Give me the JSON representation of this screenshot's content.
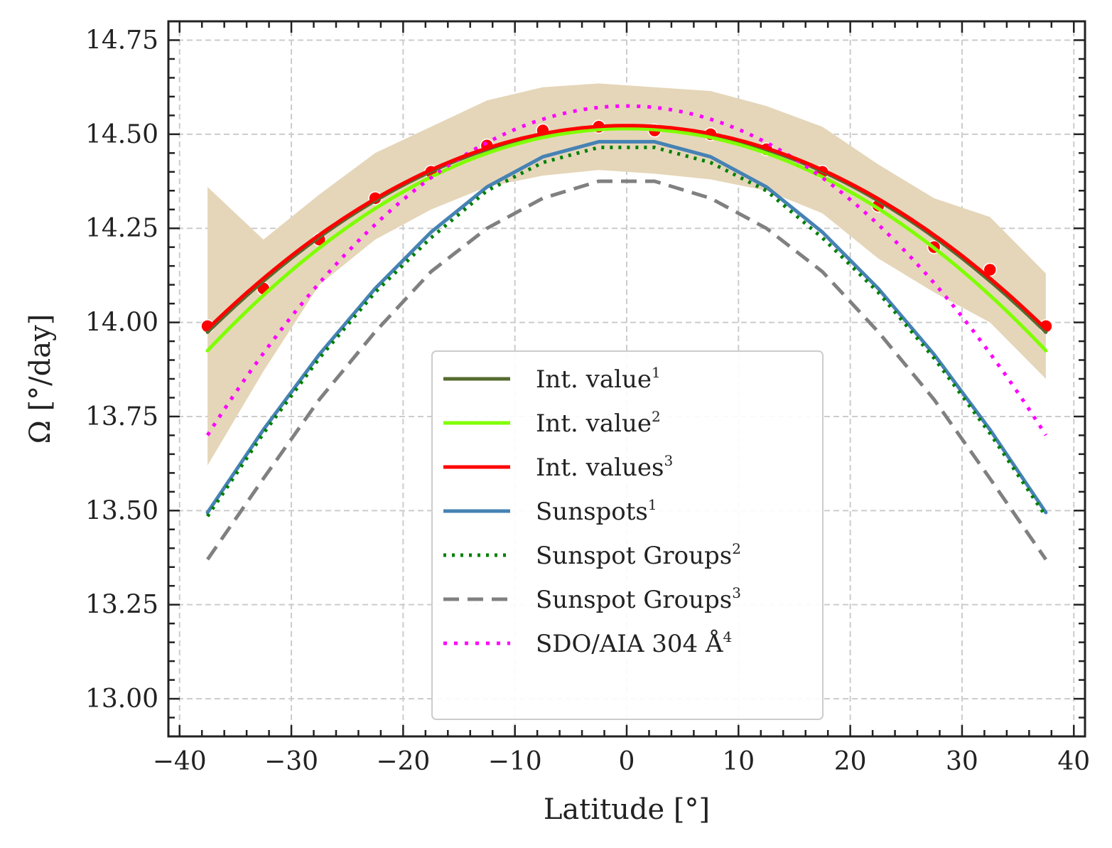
{
  "chart_data": {
    "type": "line",
    "xlabel": "Latitude  [°]",
    "ylabel": "Ω  [°/day]",
    "xlim": [
      -41,
      41
    ],
    "ylim": [
      12.9,
      14.8
    ],
    "xticks": [
      -40,
      -30,
      -20,
      -10,
      0,
      10,
      20,
      30,
      40
    ],
    "xtick_labels": [
      "−40",
      "−30",
      "−20",
      "−10",
      "0",
      "10",
      "20",
      "30",
      "40"
    ],
    "yticks": [
      13.0,
      13.25,
      13.5,
      13.75,
      14.0,
      14.25,
      14.5,
      14.75
    ],
    "ytick_labels": [
      "13.00",
      "13.25",
      "13.50",
      "13.75",
      "14.00",
      "14.25",
      "14.50",
      "14.75"
    ],
    "grid": true,
    "legend_position": "lower-center",
    "band": {
      "color": "#e5d6b9",
      "x": [
        -37.5,
        -32.5,
        -27.5,
        -22.5,
        -17.5,
        -12.5,
        -7.5,
        -2.5,
        2.5,
        7.5,
        12.5,
        17.5,
        22.5,
        27.5,
        32.5,
        37.5
      ],
      "upper": [
        14.36,
        14.22,
        14.34,
        14.45,
        14.52,
        14.59,
        14.625,
        14.635,
        14.625,
        14.615,
        14.575,
        14.52,
        14.42,
        14.33,
        14.28,
        14.13
      ],
      "lower": [
        13.62,
        13.87,
        14.1,
        14.22,
        14.3,
        14.36,
        14.39,
        14.405,
        14.395,
        14.38,
        14.35,
        14.29,
        14.17,
        14.08,
        14.0,
        13.85
      ]
    },
    "points": {
      "color": "#ff0000",
      "x": [
        -37.5,
        -32.5,
        -27.5,
        -22.5,
        -17.5,
        -12.5,
        -7.5,
        -2.5,
        2.5,
        7.5,
        12.5,
        17.5,
        22.5,
        27.5,
        32.5,
        37.5
      ],
      "y": [
        13.99,
        14.09,
        14.22,
        14.33,
        14.4,
        14.47,
        14.51,
        14.52,
        14.51,
        14.5,
        14.46,
        14.4,
        14.31,
        14.2,
        14.14,
        13.99
      ]
    },
    "series": [
      {
        "name": "Int.  value",
        "sup": "1",
        "color": "#556b2f",
        "width": 5,
        "dash": "",
        "coef": [
          14.52,
          -0.0003883
        ],
        "x": [
          -37.5,
          37.5
        ]
      },
      {
        "name": "Int.  value",
        "sup": "2",
        "color": "#7fff00",
        "width": 5,
        "dash": "",
        "coef": [
          14.515,
          -0.0004196
        ],
        "x": [
          -37.5,
          37.5
        ]
      },
      {
        "name": "Int.  values",
        "sup": "3",
        "color": "#ff0000",
        "width": 5,
        "dash": "",
        "coef": [
          14.523,
          -0.0003844
        ],
        "x": [
          -37.5,
          37.5
        ]
      },
      {
        "name": "Sunspots",
        "sup": "1",
        "color": "#4682b4",
        "width": 5,
        "dash": "",
        "x": [
          -37.5,
          -32.5,
          -27.5,
          -22.5,
          -17.5,
          -12.5,
          -7.5,
          -2.5,
          2.5,
          7.5,
          12.5,
          17.5,
          22.5,
          27.5,
          32.5,
          37.5
        ],
        "y": [
          13.495,
          13.715,
          13.915,
          14.09,
          14.24,
          14.36,
          14.44,
          14.48,
          14.48,
          14.44,
          14.36,
          14.24,
          14.09,
          13.915,
          13.715,
          13.495
        ]
      },
      {
        "name": "Sunspot  Groups",
        "sup": "2",
        "color": "#008000",
        "width": 5,
        "dash": "4 8",
        "x": [
          -37.5,
          -32.5,
          -27.5,
          -22.5,
          -17.5,
          -12.5,
          -7.5,
          -2.5,
          2.5,
          7.5,
          12.5,
          17.5,
          22.5,
          27.5,
          32.5,
          37.5
        ],
        "y": [
          13.485,
          13.705,
          13.905,
          14.08,
          14.225,
          14.35,
          14.425,
          14.465,
          14.465,
          14.425,
          14.35,
          14.225,
          14.08,
          13.905,
          13.705,
          13.485
        ]
      },
      {
        "name": "Sunspot  Groups",
        "sup": "3",
        "color": "#808080",
        "width": 5,
        "dash": "22 12",
        "x": [
          -37.5,
          -32.5,
          -27.5,
          -22.5,
          -17.5,
          -12.5,
          -7.5,
          -2.5,
          2.5,
          7.5,
          12.5,
          17.5,
          22.5,
          27.5,
          32.5,
          37.5
        ],
        "y": [
          13.37,
          13.585,
          13.795,
          13.975,
          14.135,
          14.25,
          14.33,
          14.375,
          14.375,
          14.33,
          14.25,
          14.135,
          13.975,
          13.795,
          13.585,
          13.37
        ]
      },
      {
        "name": "SDO/AIA  304  Å",
        "sup": "4",
        "color": "#ff00ff",
        "width": 5,
        "dash": "5 10",
        "coef": [
          14.575,
          -0.000622
        ],
        "x": [
          -37.5,
          37.5
        ]
      }
    ]
  }
}
